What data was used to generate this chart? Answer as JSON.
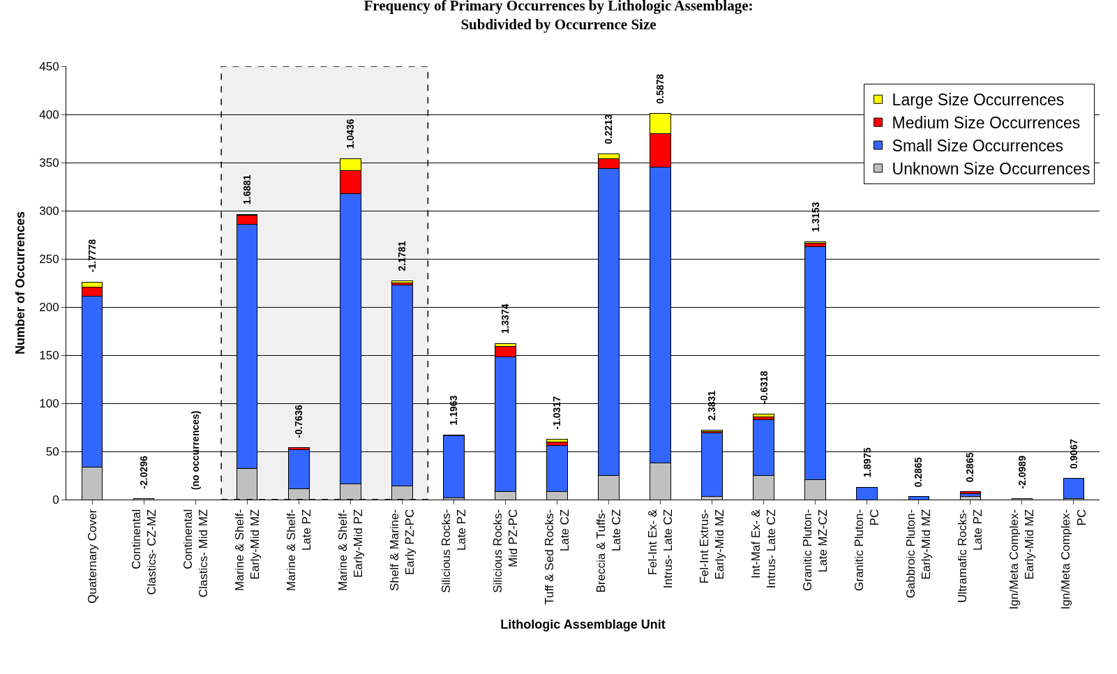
{
  "chart_data": {
    "type": "bar",
    "stacked": true,
    "title": "Frequency of Primary Occurrences by Lithologic Assemblage:\nSubdivided by Occurrence Size",
    "xlabel": "Lithologic Assemblage Unit",
    "ylabel": "Number of Occurrences",
    "categories": [
      "Quaternary Cover",
      "Continental Clastics- CZ-MZ",
      "Continental Clastics- Mid MZ",
      "Marine & Shelf- Early-Mid MZ",
      "Marine & Shelf- Late PZ",
      "Marine & Shelf- Early-Mid PZ",
      "Shelf & Marine- Early PZ-PC",
      "Silicious Rocks- Late PZ",
      "Silicious Rocks- Mid PZ-PC",
      "Tuff & Sed Rocks- Late CZ",
      "Breccia & Tuffs- Late CZ",
      "Fel-Int Ex- & Intrus- Late CZ",
      "Fel-Int Extrus- Early-Mid MZ",
      "Int-Maf Ex- & Intrus- Late CZ",
      "Granitic Pluton- Late MZ-CZ",
      "Granitic Pluton- PC",
      "Gabbroic Pluton- Early-Mid MZ",
      "Ultramafic Rocks- Late PZ",
      "Ign/Meta Complex- Early-Mid MZ",
      "Ign/Meta Complex- PC"
    ],
    "series": [
      {
        "name": "Unknown Size Occurrences",
        "color": "#c0c0c0",
        "values": [
          34,
          1,
          0,
          32,
          11,
          16,
          14,
          2,
          8,
          8,
          25,
          38,
          3,
          25,
          21,
          0,
          0,
          3,
          1,
          1
        ]
      },
      {
        "name": "Small Size Occurrences",
        "color": "#3366ff",
        "values": [
          177,
          0,
          0,
          254,
          41,
          302,
          209,
          64,
          140,
          48,
          319,
          307,
          66,
          58,
          242,
          13,
          3,
          3,
          0,
          21
        ]
      },
      {
        "name": "Medium Size Occurrences",
        "color": "#ff0000",
        "values": [
          10,
          0,
          0,
          9,
          2,
          24,
          2,
          1,
          11,
          4,
          10,
          35,
          2,
          3,
          3,
          0,
          0,
          2,
          0,
          0
        ]
      },
      {
        "name": "Large Size Occurrences",
        "color": "#ffff00",
        "values": [
          5,
          0,
          0,
          1,
          0,
          12,
          2,
          0,
          3,
          3,
          5,
          21,
          1,
          3,
          2,
          0,
          0,
          0,
          0,
          0
        ]
      }
    ],
    "ylim": [
      0,
      450
    ],
    "yticks": [
      0,
      50,
      100,
      150,
      200,
      250,
      300,
      350,
      400,
      450
    ],
    "grid": "y",
    "legend": "top right",
    "bands": [
      {
        "axis": "x",
        "from": "Marine & Shelf- Early-Mid MZ",
        "to": "Shelf & Marine- Early PZ-PC",
        "color": "#000000"
      }
    ],
    "annotations": [
      {
        "text": "-1.7778",
        "x": "Quaternary Cover",
        "y": 226
      },
      {
        "text": "-2.0296",
        "x": "Continental Clastics- CZ-MZ",
        "y": 1
      },
      {
        "text": "(no occurrences)",
        "x": "Continental Clastics- Mid MZ",
        "y": 0
      },
      {
        "text": "1.6881",
        "x": "Marine & Shelf- Early-Mid MZ",
        "y": 296
      },
      {
        "text": "-0.7636",
        "x": "Marine & Shelf- Late PZ",
        "y": 54
      },
      {
        "text": "1.0436",
        "x": "Marine & Shelf- Early-Mid PZ",
        "y": 354
      },
      {
        "text": "2.1781",
        "x": "Shelf & Marine- Early PZ-PC",
        "y": 227
      },
      {
        "text": "1.1963",
        "x": "Silicious Rocks- Late PZ",
        "y": 67
      },
      {
        "text": "1.3374",
        "x": "Silicious Rocks- Mid PZ-PC",
        "y": 162
      },
      {
        "text": "-1.0317",
        "x": "Tuff & Sed Rocks- Late CZ",
        "y": 63
      },
      {
        "text": "0.2213",
        "x": "Breccia & Tuffs- Late CZ",
        "y": 359
      },
      {
        "text": "0.5878",
        "x": "Fel-Int Ex- & Intrus- Late CZ",
        "y": 401
      },
      {
        "text": "2.3831",
        "x": "Fel-Int Extrus- Early-Mid MZ",
        "y": 72
      },
      {
        "text": "-0.6318",
        "x": "Int-Maf Ex- & Intrus- Late CZ",
        "y": 89
      },
      {
        "text": "1.3153",
        "x": "Granitic Pluton- Late MZ-CZ",
        "y": 268
      },
      {
        "text": "1.8975",
        "x": "Granitic Pluton- PC",
        "y": 13
      },
      {
        "text": "0.2865",
        "x": "Gabbroic Pluton- Early-Mid MZ",
        "y": 3
      },
      {
        "text": "0.2865",
        "x": "Ultramafic Rocks- Late PZ",
        "y": 8
      },
      {
        "text": "-2.0989",
        "x": "Ign/Meta Complex- Early-Mid MZ",
        "y": 1
      },
      {
        "text": "0.9067",
        "x": "Ign/Meta Complex- PC",
        "y": 22
      }
    ]
  }
}
